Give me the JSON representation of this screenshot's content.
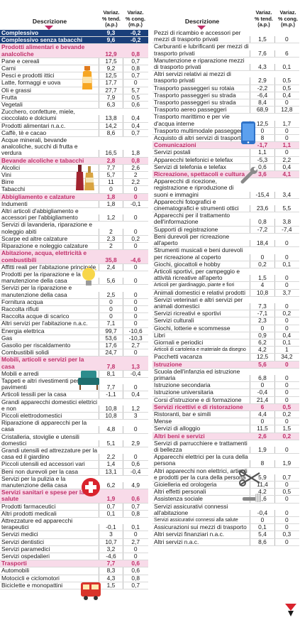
{
  "header": {
    "desc": "Descrizione",
    "col1": [
      "Variaz.",
      "% tend.",
      "(a.p.)"
    ],
    "col2": [
      "Variaz.",
      "% cong.",
      "(m.p.)"
    ]
  },
  "left": [
    {
      "t": "blue",
      "l": "Complessivo",
      "a": "9,3",
      "b": "-0,2"
    },
    {
      "t": "blue",
      "l": "Complessivo senza tabacchi",
      "a": "9,6",
      "b": "-0,2"
    },
    {
      "t": "sec",
      "l": "Prodotti alimentari e bevande analcoliche",
      "a": "12,9",
      "b": "0,8"
    },
    {
      "t": "",
      "l": "Pane e cereali",
      "a": "17,5",
      "b": "0,7"
    },
    {
      "t": "",
      "l": "Carni",
      "a": "9,2",
      "b": "0,8"
    },
    {
      "t": "",
      "l": "Pesci e prodotti ittici",
      "a": "12,5",
      "b": "0,7"
    },
    {
      "t": "",
      "l": "Latte, formaggi e uova",
      "a": "17,7",
      "b": "0"
    },
    {
      "t": "",
      "l": "Oli e grassi",
      "a": "27,7",
      "b": "5,7"
    },
    {
      "t": "",
      "l": "Frutta",
      "a": "7,9",
      "b": "0,5"
    },
    {
      "t": "",
      "l": "Vegetali",
      "a": "6,3",
      "b": "0,6"
    },
    {
      "t": "",
      "l": "Zucchero, confetture, miele, cioccolato e dolciumi",
      "a": "13,8",
      "b": "0,4"
    },
    {
      "t": "",
      "l": "Prodotti alimentari n.a.c.",
      "a": "14,2",
      "b": "0,4"
    },
    {
      "t": "",
      "l": "Caffè, tè e cacao",
      "a": "8,6",
      "b": "0,7"
    },
    {
      "t": "",
      "l": "Acque minerali, bevande analcoliche, succhi di frutta e verdura",
      "a": "16,5",
      "b": "1,8"
    },
    {
      "t": "sec",
      "l": "Bevande alcoliche e tabacchi",
      "a": "2,8",
      "b": "0,8"
    },
    {
      "t": "",
      "l": "Alcolici",
      "a": "7,7",
      "b": "2,6"
    },
    {
      "t": "",
      "l": "Vini",
      "a": "5,7",
      "b": "2"
    },
    {
      "t": "",
      "l": "Birre",
      "a": "11",
      "b": "2,2"
    },
    {
      "t": "",
      "l": "Tabacchi",
      "a": "0",
      "b": "0"
    },
    {
      "t": "sec",
      "l": "Abbigliamento e calzature",
      "a": "1,8",
      "b": "0"
    },
    {
      "t": "",
      "l": "Indumenti",
      "a": "1,8",
      "b": "-0,1"
    },
    {
      "t": "",
      "l": "Altri articoli d'abbigliamento e accessori per l'abbigliamento",
      "a": "1,2",
      "b": "0"
    },
    {
      "t": "",
      "l": "Servizi di lavanderia, riparazione e noleggio abiti",
      "a": "2",
      "b": "0"
    },
    {
      "t": "",
      "l": "Scarpe ed altre calzature",
      "a": "2,3",
      "b": "0,2"
    },
    {
      "t": "",
      "l": "Riparazione e noleggio calzature",
      "a": "2",
      "b": "0"
    },
    {
      "t": "sec",
      "l": "Abitazione, acqua, elettricità e combustibili",
      "a": "35,8",
      "b": "-4,6"
    },
    {
      "t": "",
      "l": "Affitti reali per l'abitazione principale",
      "a": "2,4",
      "b": "0"
    },
    {
      "t": "",
      "l": "Prodotti per la riparazione e la manutenzione della casa",
      "a": "5,6",
      "b": "0"
    },
    {
      "t": "",
      "l": "Servizi per la riparazione e manutenzione della casa",
      "a": "2,5",
      "b": "0"
    },
    {
      "t": "",
      "l": "Fornitura acqua",
      "a": "0",
      "b": "0"
    },
    {
      "t": "",
      "l": "Raccolta rifiuti",
      "a": "0",
      "b": "0"
    },
    {
      "t": "",
      "l": "Raccolta acque di scarico",
      "a": "0",
      "b": "0"
    },
    {
      "t": "",
      "l": "Altri servizi per l'abitazione n.a.c.",
      "a": "7,1",
      "b": "0"
    },
    {
      "t": "",
      "l": "Energia elettrica",
      "a": "99,7",
      "b": "-10,6"
    },
    {
      "t": "",
      "l": "Gas",
      "a": "53,6",
      "b": "-10,3"
    },
    {
      "t": "",
      "l": "Gasolio per riscaldamento",
      "a": "17,6",
      "b": "2,7"
    },
    {
      "t": "",
      "l": "Combustibili solidi",
      "a": "24,7",
      "b": "0"
    },
    {
      "t": "sec",
      "l": "Mobili, articoli e servizi per la casa",
      "a": "7,8",
      "b": "1,3"
    },
    {
      "t": "",
      "l": "Mobili e arredi",
      "a": "8,1",
      "b": "-0,4"
    },
    {
      "t": "",
      "l": "Tappeti e altri rivestimenti per pavimenti",
      "a": "7,7",
      "b": "0"
    },
    {
      "t": "",
      "l": "Articoli tessili per la casa",
      "a": "-1,1",
      "b": "0,4"
    },
    {
      "t": "",
      "l": "Grandi apparecchi domestici elettrici e non",
      "a": "10,8",
      "b": "1,2"
    },
    {
      "t": "",
      "l": "Piccoli elettrodomestici",
      "a": "10,8",
      "b": "3"
    },
    {
      "t": "",
      "l": "Riparazione di apparecchi per la casa",
      "a": "4,8",
      "b": "0"
    },
    {
      "t": "",
      "l": "Cristalleria, stoviglie e utensili domestici",
      "a": "5,1",
      "b": "2,9"
    },
    {
      "t": "",
      "l": "Grandi utensili ed attrezzature per la casa ed il giardino",
      "a": "2,2",
      "b": "0"
    },
    {
      "t": "",
      "l": "Piccoli utensili ed accessori vari",
      "a": "1,4",
      "b": "0,6"
    },
    {
      "t": "",
      "l": "Beni non durevoli per la casa",
      "a": "13,1",
      "b": "-0,4"
    },
    {
      "t": "",
      "l": "Servizi per la pulizia e la manutenzione della casa",
      "a": "6,2",
      "b": "4,9"
    },
    {
      "t": "sec",
      "l": "Servizi sanitari e spese per la salute",
      "a": "1,9",
      "b": "0,6"
    },
    {
      "t": "",
      "l": "Prodotti farmaceutici",
      "a": "0,7",
      "b": "0,7"
    },
    {
      "t": "",
      "l": "Altri prodotti medicali",
      "a": "0,1",
      "b": "0,8"
    },
    {
      "t": "",
      "l": "Attrezzature ed apparecchi terapeutici",
      "a": "-0,1",
      "b": "0,1"
    },
    {
      "t": "",
      "l": "Servizi medici",
      "a": "3",
      "b": "0"
    },
    {
      "t": "",
      "l": "Servizi dentistici",
      "a": "10,7",
      "b": "2,7"
    },
    {
      "t": "",
      "l": "Servizi paramedici",
      "a": "3,2",
      "b": "0"
    },
    {
      "t": "",
      "l": "Servizi ospedalieri",
      "a": "-4,6",
      "b": "0"
    },
    {
      "t": "sec",
      "l": "Trasporti",
      "a": "7,7",
      "b": "0,6"
    },
    {
      "t": "",
      "l": "Automobili",
      "a": "8,3",
      "b": "0,6"
    },
    {
      "t": "",
      "l": "Motocicli e ciclomotori",
      "a": "4,3",
      "b": "0,8"
    },
    {
      "t": "",
      "l": "Biciclette e monopattini",
      "a": "1,5",
      "b": "0,7"
    }
  ],
  "right": [
    {
      "t": "",
      "l": "Pezzi di ricambio e accessori per mezzi di trasporto privati",
      "a": "1,5",
      "b": "0"
    },
    {
      "t": "",
      "l": "Carburanti e lubrificanti per mezzi di trasporto privati",
      "a": "7,6",
      "b": "6"
    },
    {
      "t": "",
      "l": "Manutenzione e riparazione mezzi di trasporto privati",
      "a": "4,3",
      "b": "0,1"
    },
    {
      "t": "",
      "l": "Altri servizi relativi ai mezzi di trasporto privati",
      "a": "2,9",
      "b": "0,5"
    },
    {
      "t": "",
      "l": "Trasporto passeggeri su rotaia",
      "a": "-2,2",
      "b": "0,5"
    },
    {
      "t": "",
      "l": "Trasporto passeggeri su strada",
      "a": "-6,4",
      "b": "0,4"
    },
    {
      "t": "",
      "l": "Trasporto passeggeri su strada",
      "a": "8,4",
      "b": "0"
    },
    {
      "t": "",
      "l": "Trasporto aereo passeggeri",
      "a": "68,9",
      "b": "12,8"
    },
    {
      "t": "",
      "l": "Trasporto marittimo e per vie d'acqua interne",
      "a": "12,5",
      "b": "1,7"
    },
    {
      "t": "",
      "l": "Trasporto multimodale passeggeri",
      "a": "0",
      "b": "0"
    },
    {
      "t": "",
      "l": "Acquisto di altri servizi di trasporto",
      "a": "8",
      "b": "0"
    },
    {
      "t": "sec",
      "l": "Comunicazioni",
      "a": "-1,7",
      "b": "1,1"
    },
    {
      "t": "",
      "l": "Servizi postali",
      "a": "1,1",
      "b": "0"
    },
    {
      "t": "",
      "l": "Apparecchi telefonici e telefax",
      "a": "-5,3",
      "b": "2,2"
    },
    {
      "t": "",
      "l": "Servizi di telefonia e telefax",
      "a": "0,6",
      "b": "0,4"
    },
    {
      "t": "sec",
      "l": "Ricreazione, spettacoli e cultura",
      "a": "3,6",
      "b": "4,1"
    },
    {
      "t": "",
      "l": "Apparecchi di ricezione, registrazione e riproduzione di suoni e immagini",
      "a": "-15,4",
      "b": "3,4"
    },
    {
      "t": "",
      "l": "Apparecchi fotografici e cinematografici e strumenti ottici",
      "a": "23,6",
      "b": "5,5"
    },
    {
      "t": "",
      "l": "Apparecchi per il trattamento dell'informazione",
      "a": "0,8",
      "b": "3,8"
    },
    {
      "t": "",
      "l": "Supporti di registrazione",
      "a": "-7,2",
      "b": "-7,4"
    },
    {
      "t": "",
      "l": "Beni durevoli per ricreazione all'aperto",
      "a": "18,4",
      "b": "0"
    },
    {
      "t": "",
      "l": "Strumenti musicali e beni durevoli per ricreazione al coperto",
      "a": "0",
      "b": "0"
    },
    {
      "t": "",
      "l": "Giochi, giocattoli e hobby",
      "a": "0,2",
      "b": "0,1"
    },
    {
      "t": "",
      "l": "Articoli sportivi, per campeggio e attività ricreative all'aperto",
      "a": "1,5",
      "b": "0"
    },
    {
      "t": "tiny",
      "l": "Articoli per giardinaggio, piante e fiori",
      "a": "4",
      "b": "0"
    },
    {
      "t": "",
      "l": "Animali domestici e relativi prodotti",
      "a": "10,8",
      "b": "3,7"
    },
    {
      "t": "",
      "l": "Servizi veterinari e altri servizi per animali domestici",
      "a": "7,3",
      "b": "0"
    },
    {
      "t": "",
      "l": "Servizi ricreativi e sportivi",
      "a": "-7,1",
      "b": "0,2"
    },
    {
      "t": "",
      "l": "Servizi culturali",
      "a": "2,3",
      "b": "0"
    },
    {
      "t": "",
      "l": "Giochi, lotterie e scommesse",
      "a": "0",
      "b": "0"
    },
    {
      "t": "",
      "l": "Libri",
      "a": "0,9",
      "b": "0,4"
    },
    {
      "t": "",
      "l": "Giornali e periodici",
      "a": "6,2",
      "b": "0,1"
    },
    {
      "t": "tiny",
      "l": "Articoli di cartoleria e materiale da disegno",
      "a": "4,2",
      "b": "1"
    },
    {
      "t": "",
      "l": "Pacchetti vacanza",
      "a": "12,5",
      "b": "34,2"
    },
    {
      "t": "sec",
      "l": "Istruzione",
      "a": "5,6",
      "b": "0"
    },
    {
      "t": "",
      "l": "Scuola dell'infanzia ed istruzione primaria",
      "a": "6,8",
      "b": "0"
    },
    {
      "t": "",
      "l": "Istruzione secondaria",
      "a": "0",
      "b": "0"
    },
    {
      "t": "",
      "l": "Istruzione universitaria",
      "a": "-0,4",
      "b": "0"
    },
    {
      "t": "",
      "l": "Corsi d'istruzione e di formazione",
      "a": "21,4",
      "b": "0"
    },
    {
      "t": "sec",
      "l": "Servizi ricettivi e di ristorazione",
      "a": "6",
      "b": "0,5"
    },
    {
      "t": "",
      "l": "Ristoranti, bar e simili",
      "a": "4,4",
      "b": "0,2"
    },
    {
      "t": "",
      "l": "Mense",
      "a": "0",
      "b": "0"
    },
    {
      "t": "",
      "l": "Servizi di alloggio",
      "a": "11,5",
      "b": "1,5"
    },
    {
      "t": "sec",
      "l": "Altri beni e servizi",
      "a": "2,6",
      "b": "0,2"
    },
    {
      "t": "",
      "l": "Servizi di parrucchiere e trattamenti di bellezza",
      "a": "1,9",
      "b": "0"
    },
    {
      "t": "",
      "l": "Apparecchi elettrici per la cura della persona",
      "a": "8",
      "b": "1,9"
    },
    {
      "t": "",
      "l": "Altri apparecchi non elettrici, articoli e prodotti per la cura della persona",
      "a": "5,9",
      "b": "0,7"
    },
    {
      "t": "",
      "l": "Gioielleria ed orologeria",
      "a": "11,4",
      "b": "0"
    },
    {
      "t": "",
      "l": "Altri effetti personali",
      "a": "4,2",
      "b": "0,5"
    },
    {
      "t": "",
      "l": "Assistenza sociale",
      "a": "1,6",
      "b": "0"
    },
    {
      "t": "",
      "l": "Servizi assicurativi connessi all'abitazione",
      "a": "-0,4",
      "b": "0"
    },
    {
      "t": "tiny",
      "l": "Servizi assicurativi connessi alla salute",
      "a": "0",
      "b": "0"
    },
    {
      "t": "",
      "l": "Assicurazioni sui mezzi di trasporto",
      "a": "0,1",
      "b": "0"
    },
    {
      "t": "",
      "l": "Altri servizi finanziari n.a.c.",
      "a": "5,4",
      "b": "0,3"
    },
    {
      "t": "",
      "l": "Altri servizi n.a.c.",
      "a": "8,6",
      "b": "0"
    }
  ],
  "icons": [
    "juice-bottle-icon",
    "wine-bottles-icon",
    "lightbulb-icon",
    "armchair-icon",
    "medical-cross-icon",
    "bus-icon",
    "smartphone-icon",
    "wrench-icon",
    "scissors-icon",
    "toothbrush-icon",
    "logo-icon"
  ],
  "colors": {
    "section": "#c0306a",
    "section_bg": "#f8dbe9",
    "total_bg": "#1a3f7a"
  }
}
